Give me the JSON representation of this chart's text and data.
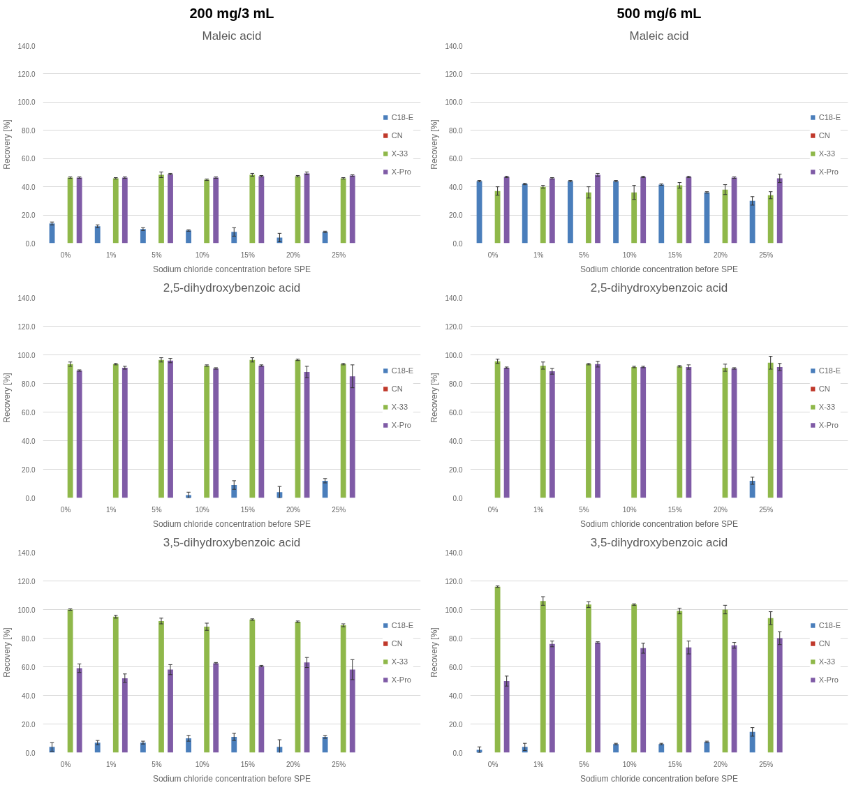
{
  "chart_data": [
    {
      "type": "bar",
      "subtitle": "200 mg/3 mL",
      "title": "Maleic acid",
      "xlabel": "Sodium chloride concentration before SPE",
      "ylabel": "Recovery [%]",
      "categories": [
        "0%",
        "1%",
        "5%",
        "10%",
        "15%",
        "20%",
        "25%"
      ],
      "ylim": [
        0,
        140
      ],
      "yticks": [
        {
          "value": 0,
          "label": "0.0"
        },
        {
          "value": 20,
          "label": "20.0"
        },
        {
          "value": 40,
          "label": "40.0"
        },
        {
          "value": 60,
          "label": "60.0"
        },
        {
          "value": 80,
          "label": "80.0"
        },
        {
          "value": 100,
          "label": "100.0"
        },
        {
          "value": 120,
          "label": "120.0"
        },
        {
          "value": 140,
          "label": "140.0"
        }
      ],
      "grid": "y",
      "legend": "right",
      "series": [
        {
          "name": "C18-E",
          "color": "#4a7ebb",
          "values": [
            14,
            12,
            10,
            9,
            8,
            4,
            8
          ],
          "errors": [
            1,
            1,
            1,
            0.5,
            3,
            3,
            0.5
          ]
        },
        {
          "name": "CN",
          "color": "#c0392b",
          "values": [
            0,
            0,
            0,
            0,
            0,
            0,
            0
          ]
        },
        {
          "name": "X-33",
          "color": "#8fb84a",
          "values": [
            46.5,
            46,
            48.5,
            45,
            48.5,
            47.5,
            46
          ],
          "errors": [
            0.5,
            0.5,
            2,
            0.5,
            1,
            0.5,
            0.5
          ]
        },
        {
          "name": "X-Pro",
          "color": "#7f5ba6",
          "values": [
            46.5,
            46.5,
            49,
            46.5,
            47.5,
            49.5,
            48
          ],
          "errors": [
            0.5,
            0.5,
            0.5,
            0.5,
            0.5,
            1,
            0.5
          ]
        }
      ]
    },
    {
      "type": "bar",
      "subtitle": "500 mg/6 mL",
      "title": "Maleic acid",
      "xlabel": "Sodium chloride concentration before SPE",
      "ylabel": "Recovery [%]",
      "categories": [
        "0%",
        "1%",
        "5%",
        "10%",
        "15%",
        "20%",
        "25%"
      ],
      "ylim": [
        0,
        140
      ],
      "yticks": [
        {
          "value": 0,
          "label": "0.0"
        },
        {
          "value": 20,
          "label": "20.0"
        },
        {
          "value": 40,
          "label": "40.0"
        },
        {
          "value": 60,
          "label": "60.0"
        },
        {
          "value": 80,
          "label": "80.0"
        },
        {
          "value": 100,
          "label": "100.0"
        },
        {
          "value": 120,
          "label": "120.0"
        },
        {
          "value": 140,
          "label": "140.0"
        }
      ],
      "grid": "y",
      "legend": "right",
      "series": [
        {
          "name": "C18-E",
          "color": "#4a7ebb",
          "values": [
            44,
            42,
            44,
            44,
            41.5,
            36,
            30
          ],
          "errors": [
            0.5,
            0.5,
            0.5,
            0.5,
            0.5,
            0.5,
            3
          ]
        },
        {
          "name": "CN",
          "color": "#c0392b",
          "values": [
            0,
            0,
            0,
            0,
            0,
            0,
            0
          ]
        },
        {
          "name": "X-33",
          "color": "#8fb84a",
          "values": [
            37,
            40,
            36,
            36,
            41,
            38,
            34
          ],
          "errors": [
            3,
            1,
            4,
            5,
            2,
            3.5,
            2.5
          ]
        },
        {
          "name": "X-Pro",
          "color": "#7f5ba6",
          "values": [
            47,
            46,
            48.5,
            47,
            47,
            46.5,
            46
          ],
          "errors": [
            0.5,
            0.5,
            1,
            0.5,
            0.5,
            0.5,
            3
          ]
        }
      ]
    },
    {
      "type": "bar",
      "title": "2,5-dihydroxybenzoic acid",
      "xlabel": "Sodium chloride concentration before SPE",
      "ylabel": "Recovery [%]",
      "categories": [
        "0%",
        "1%",
        "5%",
        "10%",
        "15%",
        "20%",
        "25%"
      ],
      "ylim": [
        0,
        140
      ],
      "yticks": [
        {
          "value": 0,
          "label": "0.0"
        },
        {
          "value": 20,
          "label": "20.0"
        },
        {
          "value": 40,
          "label": "40.0"
        },
        {
          "value": 60,
          "label": "60.0"
        },
        {
          "value": 80,
          "label": "80.0"
        },
        {
          "value": 100,
          "label": "100.0"
        },
        {
          "value": 120,
          "label": "120.0"
        },
        {
          "value": 140,
          "label": "140.0"
        }
      ],
      "grid": "y",
      "legend": "right",
      "series": [
        {
          "name": "C18-E",
          "color": "#4a7ebb",
          "values": [
            0,
            0,
            0,
            2,
            9,
            4,
            12
          ],
          "errors": [
            null,
            null,
            null,
            2,
            3,
            4,
            1.5
          ]
        },
        {
          "name": "CN",
          "color": "#c0392b",
          "values": [
            0,
            0,
            0,
            0,
            0,
            0,
            0
          ]
        },
        {
          "name": "X-33",
          "color": "#8fb84a",
          "values": [
            93.5,
            93.5,
            96.5,
            92.5,
            96.5,
            96.5,
            93.5
          ],
          "errors": [
            1.5,
            0.5,
            1.5,
            0.5,
            1.5,
            0.5,
            0.5
          ]
        },
        {
          "name": "X-Pro",
          "color": "#7f5ba6",
          "values": [
            89,
            91,
            96,
            90.5,
            92.5,
            88,
            85
          ],
          "errors": [
            0.5,
            1,
            1.5,
            0.5,
            0.5,
            4,
            8
          ]
        }
      ]
    },
    {
      "type": "bar",
      "title": "2,5-dihydroxybenzoic acid",
      "xlabel": "Sodium chloride concentration before SPE",
      "ylabel": "Recovery [%]",
      "categories": [
        "0%",
        "1%",
        "5%",
        "10%",
        "15%",
        "20%",
        "25%"
      ],
      "ylim": [
        0,
        140
      ],
      "yticks": [
        {
          "value": 0,
          "label": "0.0"
        },
        {
          "value": 20,
          "label": "20.0"
        },
        {
          "value": 40,
          "label": "40.0"
        },
        {
          "value": 60,
          "label": "60.0"
        },
        {
          "value": 80,
          "label": "80.0"
        },
        {
          "value": 100,
          "label": "100.0"
        },
        {
          "value": 120,
          "label": "120.0"
        },
        {
          "value": 140,
          "label": "140.0"
        }
      ],
      "grid": "y",
      "legend": "right",
      "series": [
        {
          "name": "C18-E",
          "color": "#4a7ebb",
          "values": [
            0,
            0,
            0,
            0,
            0,
            0,
            12
          ],
          "errors": [
            null,
            null,
            null,
            null,
            null,
            null,
            2.5
          ]
        },
        {
          "name": "CN",
          "color": "#c0392b",
          "values": [
            0,
            0,
            0,
            0,
            0,
            0,
            0
          ]
        },
        {
          "name": "X-33",
          "color": "#8fb84a",
          "values": [
            95.5,
            92.5,
            93.5,
            91.5,
            92,
            91,
            94.5
          ],
          "errors": [
            1.5,
            2.5,
            0.5,
            0.5,
            0.5,
            2.5,
            4.5
          ]
        },
        {
          "name": "X-Pro",
          "color": "#7f5ba6",
          "values": [
            91,
            88.5,
            93.5,
            91.5,
            91.5,
            90.5,
            91.5
          ],
          "errors": [
            0.5,
            2,
            2,
            0.5,
            1.5,
            0.5,
            2.5
          ]
        }
      ]
    },
    {
      "type": "bar",
      "title": "3,5-dihydroxybenzoic acid",
      "xlabel": "Sodium chloride concentration before SPE",
      "ylabel": "Recovery [%]",
      "categories": [
        "0%",
        "1%",
        "5%",
        "10%",
        "15%",
        "20%",
        "25%"
      ],
      "ylim": [
        0,
        140
      ],
      "yticks": [
        {
          "value": 0,
          "label": "0.0"
        },
        {
          "value": 20,
          "label": "20.0"
        },
        {
          "value": 40,
          "label": "40.0"
        },
        {
          "value": 60,
          "label": "60.0"
        },
        {
          "value": 80,
          "label": "80.0"
        },
        {
          "value": 100,
          "label": "100.0"
        },
        {
          "value": 120,
          "label": "120.0"
        },
        {
          "value": 140,
          "label": "140.0"
        }
      ],
      "grid": "y",
      "legend": "right",
      "series": [
        {
          "name": "C18-E",
          "color": "#4a7ebb",
          "values": [
            4,
            7,
            7,
            10,
            11,
            4,
            11
          ],
          "errors": [
            3,
            1.5,
            1,
            2,
            2.5,
            5,
            1
          ]
        },
        {
          "name": "CN",
          "color": "#c0392b",
          "values": [
            0,
            0,
            0,
            0,
            0,
            0,
            0
          ]
        },
        {
          "name": "X-33",
          "color": "#8fb84a",
          "values": [
            100,
            95,
            92,
            88,
            93,
            91.5,
            89
          ],
          "errors": [
            0.5,
            1,
            2,
            2.5,
            0.5,
            0.5,
            1
          ]
        },
        {
          "name": "X-Pro",
          "color": "#7f5ba6",
          "values": [
            59,
            52,
            58,
            62.5,
            60.5,
            63,
            58
          ],
          "errors": [
            3,
            3,
            3.5,
            0.5,
            0.5,
            3.5,
            7
          ]
        }
      ]
    },
    {
      "type": "bar",
      "title": "3,5-dihydroxybenzoic acid",
      "xlabel": "Sodium chloride concentration before SPE",
      "ylabel": "Recovery [%]",
      "categories": [
        "0%",
        "1%",
        "5%",
        "10%",
        "15%",
        "20%",
        "25%"
      ],
      "ylim": [
        0,
        140
      ],
      "yticks": [
        {
          "value": 0,
          "label": "0.0"
        },
        {
          "value": 20,
          "label": "20.0"
        },
        {
          "value": 40,
          "label": "40.0"
        },
        {
          "value": 60,
          "label": "60.0"
        },
        {
          "value": 80,
          "label": "80.0"
        },
        {
          "value": 100,
          "label": "100.0"
        },
        {
          "value": 120,
          "label": "120.0"
        },
        {
          "value": 140,
          "label": "140.0"
        }
      ],
      "grid": "y",
      "legend": "right",
      "series": [
        {
          "name": "C18-E",
          "color": "#4a7ebb",
          "values": [
            2,
            4,
            0,
            6,
            6,
            7.5,
            14.5
          ],
          "errors": [
            2,
            2.5,
            null,
            0.5,
            0.5,
            0.5,
            3
          ]
        },
        {
          "name": "CN",
          "color": "#c0392b",
          "values": [
            0,
            0,
            0,
            0,
            0,
            0,
            0
          ]
        },
        {
          "name": "X-33",
          "color": "#8fb84a",
          "values": [
            116,
            106,
            103.5,
            103.5,
            99,
            100,
            94
          ],
          "errors": [
            0.5,
            3,
            2,
            0.5,
            2,
            3,
            4.5
          ]
        },
        {
          "name": "X-Pro",
          "color": "#7f5ba6",
          "values": [
            50,
            76,
            77,
            73,
            73.5,
            75,
            80
          ],
          "errors": [
            3.5,
            2,
            0.5,
            3.5,
            4.5,
            2,
            4.5
          ]
        }
      ]
    }
  ]
}
